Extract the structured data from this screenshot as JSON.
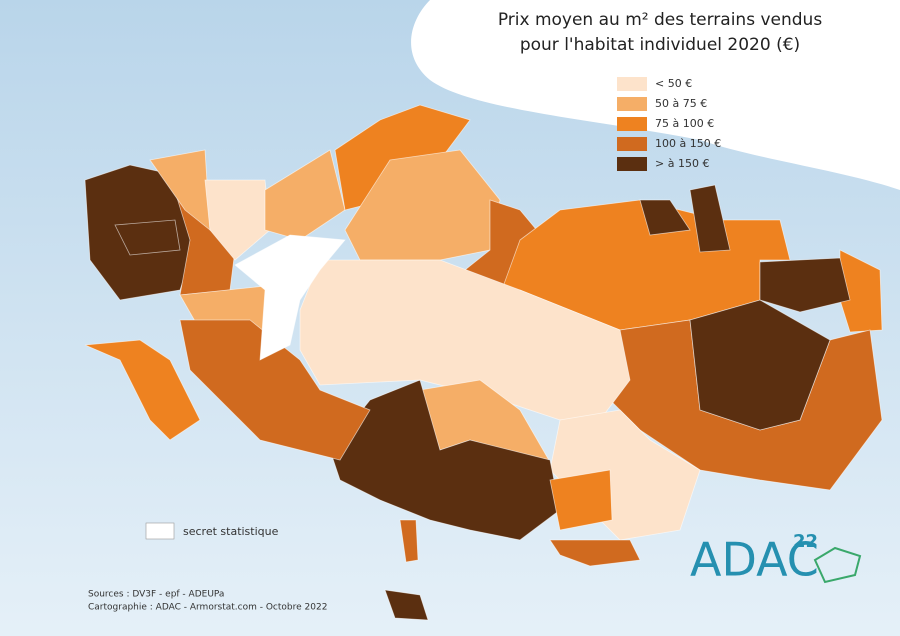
{
  "title": [
    "Prix moyen au m² des terrains vendus",
    "pour l'habitat individuel 2020 (€)"
  ],
  "legend": {
    "items": [
      {
        "label": "< 50 €",
        "color": "#fde3cb"
      },
      {
        "label": "50 à 75 €",
        "color": "#f5ae67"
      },
      {
        "label": "75 à 100 €",
        "color": "#ee8220"
      },
      {
        "label": "100 à 150 €",
        "color": "#d06a1f"
      },
      {
        "label": "> à 150 €",
        "color": "#5b2f10"
      }
    ]
  },
  "secret": {
    "label": "secret statistique",
    "color": "#ffffff"
  },
  "sources": [
    "Sources : DV3F - epf - ADEUPa",
    "Cartographie : ADAC - Armorstat.com - Octobre 2022"
  ],
  "logo": {
    "text": "ADAC",
    "number": "22"
  }
}
